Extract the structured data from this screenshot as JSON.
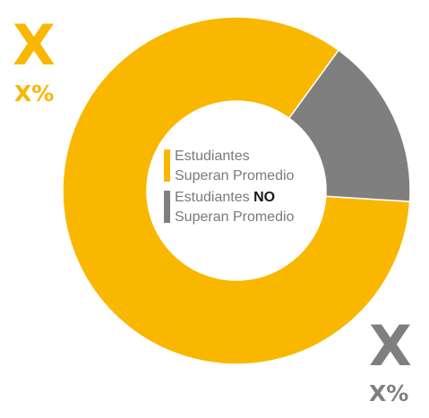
{
  "colors": {
    "supera": "#F9B700",
    "no_supera": "#7F7F7F"
  },
  "labels": {
    "supera_value": "X",
    "supera_pct": "X%",
    "no_supera_value": "X",
    "no_supera_pct": "X%"
  },
  "legend": {
    "supera_line1": "Estudiantes",
    "supera_line2": "Superan Promedio",
    "no_supera_line1_a": "Estudiantes ",
    "no_supera_line1_b": "NO",
    "no_supera_line2": "Superan Promedio"
  },
  "chart_data": {
    "type": "pie",
    "donut": true,
    "legend_position": "center",
    "categories": [
      "Estudiantes Superan Promedio",
      "Estudiantes NO Superan Promedio"
    ],
    "values": [
      84,
      16
    ],
    "value_labels": [
      "X%",
      "X%"
    ]
  }
}
